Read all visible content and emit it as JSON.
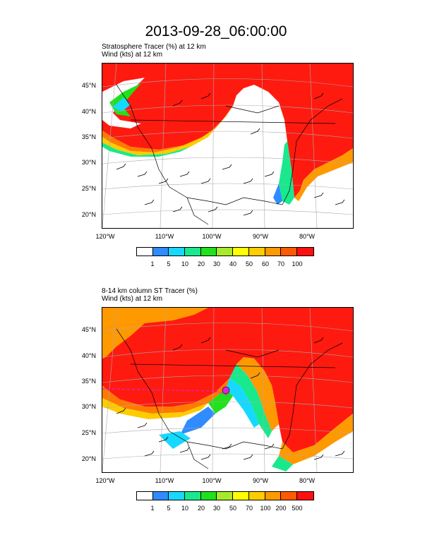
{
  "title": "2013-09-28_06:00:00",
  "panels": [
    {
      "subtitle_line1": "Stratosphere Tracer   (%)     at   12 km",
      "subtitle_line2": "Wind   (kts)     at   12 km",
      "lat_labels": [
        "45°N",
        "40°N",
        "35°N",
        "30°N",
        "25°N",
        "20°N"
      ],
      "lon_labels": [
        "120°W",
        "110°W",
        "100°W",
        "90°W",
        "80°W"
      ],
      "legend_labels": [
        "1",
        "5",
        "10",
        "20",
        "30",
        "40",
        "50",
        "60",
        "70",
        "100"
      ]
    },
    {
      "subtitle_line1": "8-14 km column ST Tracer   (%)",
      "subtitle_line2": "Wind   (kts)     at   12 km",
      "lat_labels": [
        "45°N",
        "40°N",
        "35°N",
        "30°N",
        "25°N",
        "20°N"
      ],
      "lon_labels": [
        "120°W",
        "110°W",
        "100°W",
        "90°W",
        "80°W"
      ],
      "legend_labels": [
        "1",
        "5",
        "10",
        "20",
        "30",
        "50",
        "70",
        "100",
        "200",
        "500"
      ]
    }
  ],
  "colors": {
    "legend": [
      "#ffffff",
      "#2f8cff",
      "#17d8ff",
      "#17e98c",
      "#21e11c",
      "#a6ea2b",
      "#ffff00",
      "#ffcc00",
      "#ff9900",
      "#ff5a00",
      "#ff1010"
    ]
  }
}
